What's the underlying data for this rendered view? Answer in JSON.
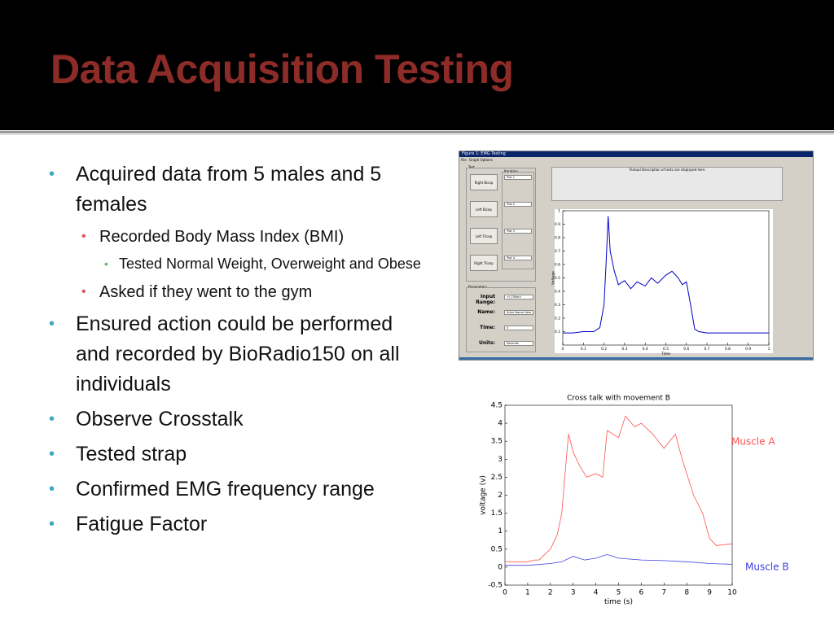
{
  "slide": {
    "title": "Data Acquisition Testing",
    "bullets": [
      {
        "level": 1,
        "text": "Acquired data from 5 males and 5 females"
      },
      {
        "level": 2,
        "text": "Recorded Body Mass Index (BMI)"
      },
      {
        "level": 3,
        "text": "Tested Normal Weight, Overweight and Obese"
      },
      {
        "level": 2,
        "text": "Asked if they went to the gym"
      },
      {
        "level": 1,
        "text": "Ensured action could be performed and recorded by BioRadio150 on all individuals"
      },
      {
        "level": 1,
        "text": "Observe Crosstalk"
      },
      {
        "level": 1,
        "text": "Tested strap"
      },
      {
        "level": 1,
        "text": "Confirmed EMG frequency range"
      },
      {
        "level": 1,
        "text": "Fatigue Factor"
      }
    ]
  },
  "figure1": {
    "window_title": "Figure 1: EMG Testing",
    "menu": [
      "File",
      "Graph Options"
    ],
    "panel_labels": [
      "Test",
      "Iteration",
      "Parameters"
    ],
    "buttons": [
      "Right Bicep",
      "Left Bicep",
      "Left Tricep",
      "Right Tricep"
    ],
    "dropdowns": [
      "Plot 1",
      "Plot 2",
      "Plot 3",
      "Plot 4"
    ],
    "fields": [
      {
        "label": "Input Range:",
        "value": "+/-750mV"
      },
      {
        "label": "Name:",
        "value": "Enter Name Here"
      },
      {
        "label": "Time:",
        "value": "0"
      },
      {
        "label": "Units:",
        "value": "Seconds"
      }
    ],
    "description": "Textual Description of tests are displayed here",
    "chart_data": {
      "type": "line",
      "xlabel": "Time",
      "ylabel": "Voltage",
      "xlim": [
        0,
        1
      ],
      "ylim": [
        0,
        1
      ],
      "xticks": [
        0,
        0.1,
        0.2,
        0.3,
        0.4,
        0.5,
        0.6,
        0.7,
        0.8,
        0.9,
        1
      ],
      "yticks": [
        0.1,
        0.2,
        0.3,
        0.4,
        0.5,
        0.6,
        0.7,
        0.8,
        0.9,
        1
      ],
      "series": [
        {
          "color": "#0000c8",
          "x": [
            0,
            0.05,
            0.1,
            0.15,
            0.18,
            0.2,
            0.21,
            0.22,
            0.23,
            0.25,
            0.27,
            0.3,
            0.33,
            0.36,
            0.4,
            0.43,
            0.46,
            0.5,
            0.53,
            0.56,
            0.58,
            0.6,
            0.62,
            0.64,
            0.66,
            0.7,
            0.8,
            0.9,
            1
          ],
          "values": [
            0.09,
            0.09,
            0.1,
            0.1,
            0.13,
            0.3,
            0.6,
            0.96,
            0.7,
            0.55,
            0.45,
            0.48,
            0.42,
            0.47,
            0.44,
            0.5,
            0.46,
            0.52,
            0.55,
            0.5,
            0.45,
            0.47,
            0.3,
            0.12,
            0.1,
            0.09,
            0.09,
            0.09,
            0.09
          ]
        }
      ]
    }
  },
  "figure2": {
    "chart_data": {
      "type": "line",
      "title": "Cross talk with movement B",
      "xlabel": "time (s)",
      "ylabel": "voltage (v)",
      "xlim": [
        0,
        10
      ],
      "ylim": [
        -0.5,
        4.5
      ],
      "xticks": [
        0,
        1,
        2,
        3,
        4,
        5,
        6,
        7,
        8,
        9,
        10
      ],
      "yticks": [
        -0.5,
        0,
        0.5,
        1,
        1.5,
        2,
        2.5,
        3,
        3.5,
        4,
        4.5
      ],
      "series": [
        {
          "name": "Muscle A",
          "color": "#ff5050",
          "x": [
            0,
            0.5,
            1,
            1.3,
            1.5,
            2,
            2.3,
            2.5,
            2.7,
            2.8,
            3,
            3.3,
            3.6,
            4,
            4.3,
            4.5,
            5,
            5.3,
            5.7,
            6,
            6.5,
            7,
            7.5,
            7.8,
            8,
            8.3,
            8.7,
            9,
            9.3,
            10
          ],
          "values": [
            0.15,
            0.15,
            0.15,
            0.2,
            0.2,
            0.5,
            0.9,
            1.5,
            3.0,
            3.7,
            3.2,
            2.8,
            2.5,
            2.6,
            2.5,
            3.8,
            3.6,
            4.2,
            3.9,
            4.0,
            3.7,
            3.3,
            3.7,
            3.0,
            2.6,
            2.0,
            1.5,
            0.8,
            0.6,
            0.65
          ]
        },
        {
          "name": "Muscle B",
          "color": "#4040e0",
          "x": [
            0,
            1,
            2,
            2.5,
            3,
            3.5,
            4,
            4.5,
            5,
            6,
            7,
            8,
            9,
            10
          ],
          "values": [
            0.05,
            0.05,
            0.1,
            0.15,
            0.3,
            0.2,
            0.25,
            0.35,
            0.25,
            0.2,
            0.18,
            0.15,
            0.1,
            0.08
          ]
        }
      ]
    }
  }
}
